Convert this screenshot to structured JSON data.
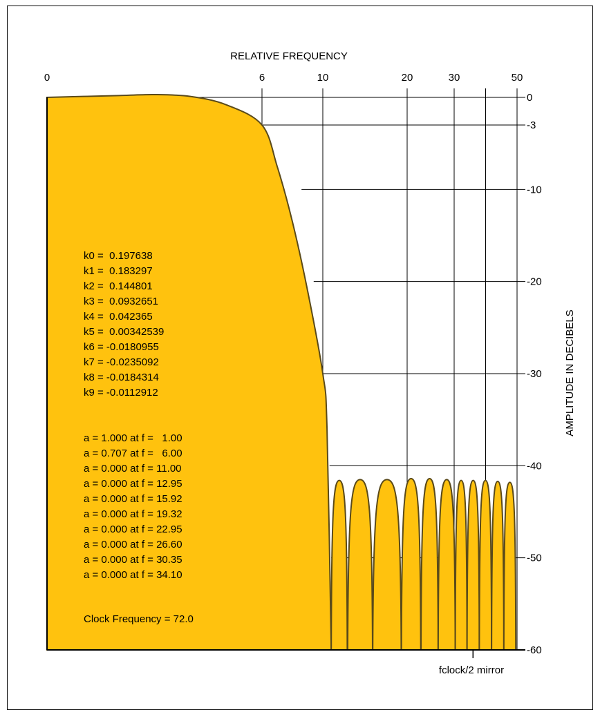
{
  "chart_data": {
    "type": "area",
    "title": "",
    "xlabel": "RELATIVE FREQUENCY",
    "ylabel": "AMPLITUDE IN DECIBELS",
    "fill_color": "#FFC20E",
    "line_color": "#5a4a1a",
    "grid": true,
    "x_scale": "warped (linear below 6, compressed above)",
    "x_ticks": [
      {
        "value": 0,
        "label": "0"
      },
      {
        "value": 6,
        "label": "6"
      },
      {
        "value": 10,
        "label": "10"
      },
      {
        "value": 20,
        "label": "20"
      },
      {
        "value": 30,
        "label": "30"
      },
      {
        "value": 50,
        "label": "50"
      }
    ],
    "y_ticks": [
      {
        "value": 0,
        "label": "0"
      },
      {
        "value": -3,
        "label": "-3"
      },
      {
        "value": -10,
        "label": "-10"
      },
      {
        "value": -20,
        "label": "-20"
      },
      {
        "value": -30,
        "label": "-30"
      },
      {
        "value": -40,
        "label": "-40"
      },
      {
        "value": -50,
        "label": "-50"
      },
      {
        "value": -60,
        "label": "-60"
      }
    ],
    "ylim": [
      -60,
      0
    ],
    "passband": {
      "x": [
        0,
        1,
        2,
        3,
        4,
        5,
        6,
        7,
        8,
        9,
        10,
        10.5,
        11
      ],
      "y": [
        0,
        0.1,
        0.2,
        0.3,
        0.1,
        -0.8,
        -3,
        -7.5,
        -13.5,
        -21,
        -30,
        -36,
        -60
      ]
    },
    "stopband_lobes": [
      {
        "start": 11.0,
        "end": 12.9,
        "peak_db": -41.6
      },
      {
        "start": 12.95,
        "end": 15.9,
        "peak_db": -41.5
      },
      {
        "start": 15.92,
        "end": 19.3,
        "peak_db": -41.5
      },
      {
        "start": 19.32,
        "end": 22.9,
        "peak_db": -41.4
      },
      {
        "start": 22.95,
        "end": 26.6,
        "peak_db": -41.4
      },
      {
        "start": 26.6,
        "end": 30.35,
        "peak_db": -41.5
      },
      {
        "start": 30.35,
        "end": 34.1,
        "peak_db": -41.6
      },
      {
        "start": 34.1,
        "end": 38.0,
        "peak_db": -41.6
      },
      {
        "start": 38.0,
        "end": 41.9,
        "peak_db": -41.6
      },
      {
        "start": 41.9,
        "end": 45.8,
        "peak_db": -41.7
      },
      {
        "start": 45.8,
        "end": 49.6,
        "peak_db": -41.8
      }
    ],
    "mirror_marker": {
      "value": 36,
      "label": "fclock/2 mirror"
    },
    "coefficients": [
      "k0 =  0.197638",
      "k1 =  0.183297",
      "k2 =  0.144801",
      "k3 =  0.0932651",
      "k4 =  0.042365",
      "k5 =  0.00342539",
      "k6 = -0.0180955",
      "k7 = -0.0235092",
      "k8 = -0.0184314",
      "k9 = -0.0112912"
    ],
    "amplitude_specs": [
      "a = 1.000 at f =   1.00",
      "a = 0.707 at f =   6.00",
      "a = 0.000 at f = 11.00",
      "a = 0.000 at f = 12.95",
      "a = 0.000 at f = 15.92",
      "a = 0.000 at f = 19.32",
      "a = 0.000 at f = 22.95",
      "a = 0.000 at f = 26.60",
      "a = 0.000 at f = 30.35",
      "a = 0.000 at f = 34.10"
    ],
    "clock_note": "Clock Frequency = 72.0"
  }
}
